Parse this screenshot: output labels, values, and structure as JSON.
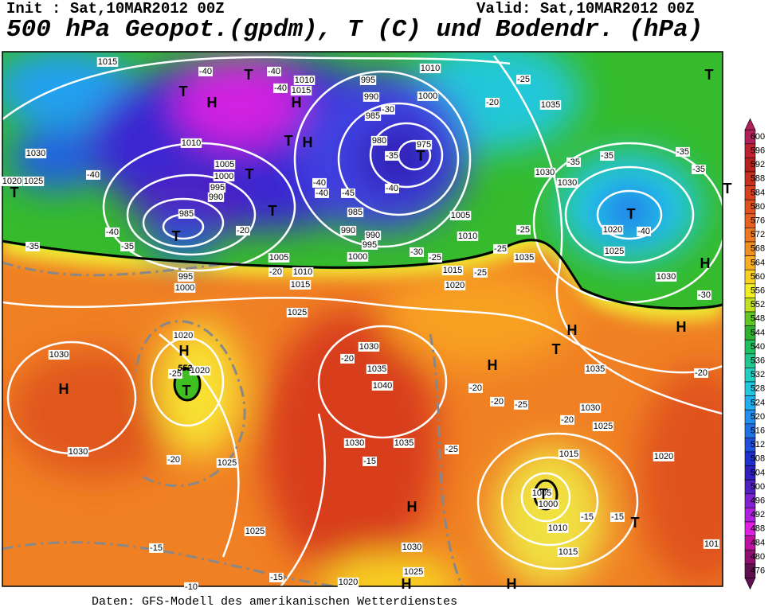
{
  "header": {
    "init": "Init : Sat,10MAR2012 00Z",
    "valid": "Valid: Sat,10MAR2012 00Z",
    "title": "500 hPa Geopot.(gpdm), T (C) und Bodendr. (hPa)"
  },
  "footer": "Daten: GFS-Modell des amerikanischen Wetterdienstes",
  "colorbar": {
    "levels": [
      600,
      596,
      592,
      588,
      584,
      580,
      576,
      572,
      568,
      564,
      560,
      556,
      552,
      548,
      544,
      540,
      536,
      532,
      528,
      524,
      520,
      516,
      512,
      508,
      504,
      500,
      496,
      492,
      488,
      484,
      480,
      476
    ],
    "colors": [
      "#b0205a",
      "#c02030",
      "#b82020",
      "#c83020",
      "#d84020",
      "#e05020",
      "#e86020",
      "#f07820",
      "#f09020",
      "#f8b020",
      "#f8d020",
      "#f0f020",
      "#c0e020",
      "#60c820",
      "#30b030",
      "#20c060",
      "#20c890",
      "#20d0c0",
      "#20c8e0",
      "#20b0f0",
      "#2090f0",
      "#2070e8",
      "#2050e0",
      "#2030d0",
      "#3020c0",
      "#5020c0",
      "#8020d0",
      "#b020e0",
      "#e020e0",
      "#c010a0",
      "#901070",
      "#601050"
    ]
  },
  "map": {
    "pressure_labels": [
      "1015",
      "1010",
      "1015",
      "995",
      "990",
      "1000",
      "985",
      "980",
      "975",
      "1010",
      "1030",
      "1025",
      "1020",
      "1010",
      "1005",
      "1000",
      "995",
      "990",
      "985",
      "1035",
      "1030",
      "1030",
      "1020",
      "1025",
      "1035",
      "1030",
      "1005",
      "1010",
      "995",
      "990",
      "990",
      "1000",
      "985",
      "1005",
      "1010",
      "1015",
      "995",
      "1000",
      "1025",
      "1020",
      "1015",
      "1030",
      "1035",
      "1040",
      "1020",
      "1020",
      "1030",
      "1030",
      "1025",
      "1025",
      "1030",
      "1035",
      "1030",
      "1025",
      "1020",
      "1035",
      "1030",
      "1025",
      "1020",
      "1015",
      "1005",
      "1000",
      "1010",
      "1015",
      "101"
    ],
    "centers": [
      "T",
      "T",
      "H",
      "T",
      "H",
      "T",
      "H",
      "T",
      "T",
      "T",
      "T",
      "T",
      "T",
      "T",
      "H",
      "H",
      "H",
      "T",
      "H",
      "H",
      "H",
      "T",
      "H",
      "T",
      "T",
      "H",
      "H"
    ],
    "temperature_labels": [
      "-40",
      "-40",
      "-35",
      "-35",
      "-40",
      "-40",
      "-40",
      "-40",
      "-40",
      "-45",
      "-40",
      "-35",
      "-30",
      "-20",
      "-25",
      "-35",
      "-35",
      "-35",
      "-35",
      "-40",
      "-30",
      "-25",
      "-25",
      "-30",
      "-25",
      "-25",
      "-20",
      "-20",
      "-20",
      "-25",
      "-20",
      "-20",
      "-25",
      "-20",
      "-20",
      "-25",
      "-15",
      "-20",
      "-15",
      "-15",
      "-15",
      "-15",
      "-10"
    ],
    "contour_label": "552"
  }
}
